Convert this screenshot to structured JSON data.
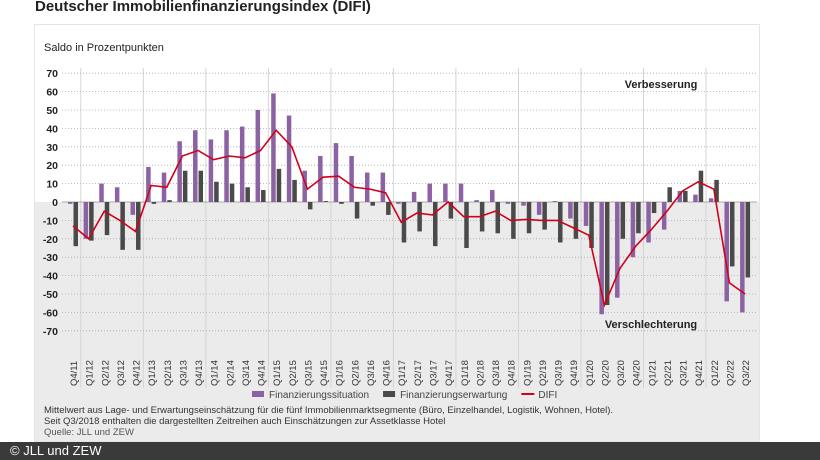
{
  "title": "Deutscher Immobilienfinanzierungsindex (DIFI)",
  "copyright": "© JLL und ZEW",
  "notes": [
    "Mittelwert aus Lage- und Erwartungseinschätzung für die fünf Immobilienmarktsegmente (Büro, Einzelhandel, Logistik, Wohnen, Hotel).",
    "Seit Q3/2018 enthalten die dargestellten Zeitreihen auch Einschätzungen zur Assetklasse Hotel"
  ],
  "source": "Quelle: JLL und ZEW",
  "chart_data": {
    "type": "bar",
    "ylabel": "Saldo in Prozentpunkten",
    "ylim": [
      -70,
      70
    ],
    "yticks": [
      70,
      60,
      50,
      40,
      30,
      20,
      10,
      0,
      -10,
      -20,
      -30,
      -40,
      -50,
      -60,
      -70
    ],
    "grid": true,
    "legend_position": "bottom-right",
    "annotations": {
      "top": "Verbesserung",
      "bottom": "Verschlechterung"
    },
    "colors": {
      "Finanzierungssituation": "#8c62a3",
      "Finanzierungserwartung": "#4a4a4a",
      "DIFI": "#d0021b",
      "negative_area": "#ebebeb"
    },
    "categories": [
      "Q4/11",
      "Q1/12",
      "Q2/12",
      "Q3/12",
      "Q4/12",
      "Q1/13",
      "Q2/13",
      "Q3/13",
      "Q4/13",
      "Q1/14",
      "Q2/14",
      "Q3/14",
      "Q4/14",
      "Q1/15",
      "Q2/15",
      "Q3/15",
      "Q4/15",
      "Q1/16",
      "Q2/16",
      "Q3/16",
      "Q4/16",
      "Q1/17",
      "Q2/17",
      "Q3/17",
      "Q4/17",
      "Q1/18",
      "Q2/18",
      "Q3/18",
      "Q4/18",
      "Q1/19",
      "Q2/19",
      "Q3/19",
      "Q4/19",
      "Q1/20",
      "Q2/20",
      "Q3/20",
      "Q4/20",
      "Q1/21",
      "Q2/21",
      "Q3/21",
      "Q4/21",
      "Q1/22",
      "Q2/22",
      "Q3/22"
    ],
    "series": [
      {
        "name": "Finanzierungssituation",
        "type": "bar",
        "values": [
          -1,
          -20,
          10,
          8,
          -7,
          19,
          16,
          33,
          39,
          34,
          39,
          41,
          50,
          59,
          47,
          17,
          25,
          32,
          25,
          16,
          16,
          -1,
          5.5,
          10,
          10,
          10,
          1,
          6.5,
          -1,
          -2,
          -7,
          0.5,
          -9,
          -13,
          -61,
          -52,
          -30,
          -22,
          -15,
          6,
          4,
          2,
          -54,
          -60
        ]
      },
      {
        "name": "Finanzierungserwartung",
        "type": "bar",
        "values": [
          -24,
          -21,
          -18,
          -26,
          -26,
          -1,
          1,
          17,
          17,
          11,
          10,
          8,
          6.5,
          18,
          12,
          -4,
          0.5,
          -1,
          -9,
          -2,
          -7,
          -22,
          -16,
          -24,
          -9,
          -25,
          -16,
          -17,
          -20,
          -17,
          -15,
          -22,
          -20,
          -25,
          -56,
          -20,
          -17,
          -6,
          8,
          6,
          17,
          12,
          -35,
          -41
        ]
      },
      {
        "name": "DIFI",
        "type": "line",
        "values": [
          -13,
          -20,
          -5,
          -10,
          -16,
          9,
          8,
          25,
          28,
          23,
          25,
          24,
          28,
          39,
          30,
          7,
          13.5,
          14,
          8,
          7,
          5,
          -11,
          -6,
          -7,
          0,
          -8,
          -8,
          -5,
          -10,
          -9.5,
          -10,
          -10,
          -14,
          -18,
          -56,
          -36,
          -24,
          -15,
          -5,
          6,
          11,
          7,
          -44,
          -50
        ]
      }
    ]
  }
}
